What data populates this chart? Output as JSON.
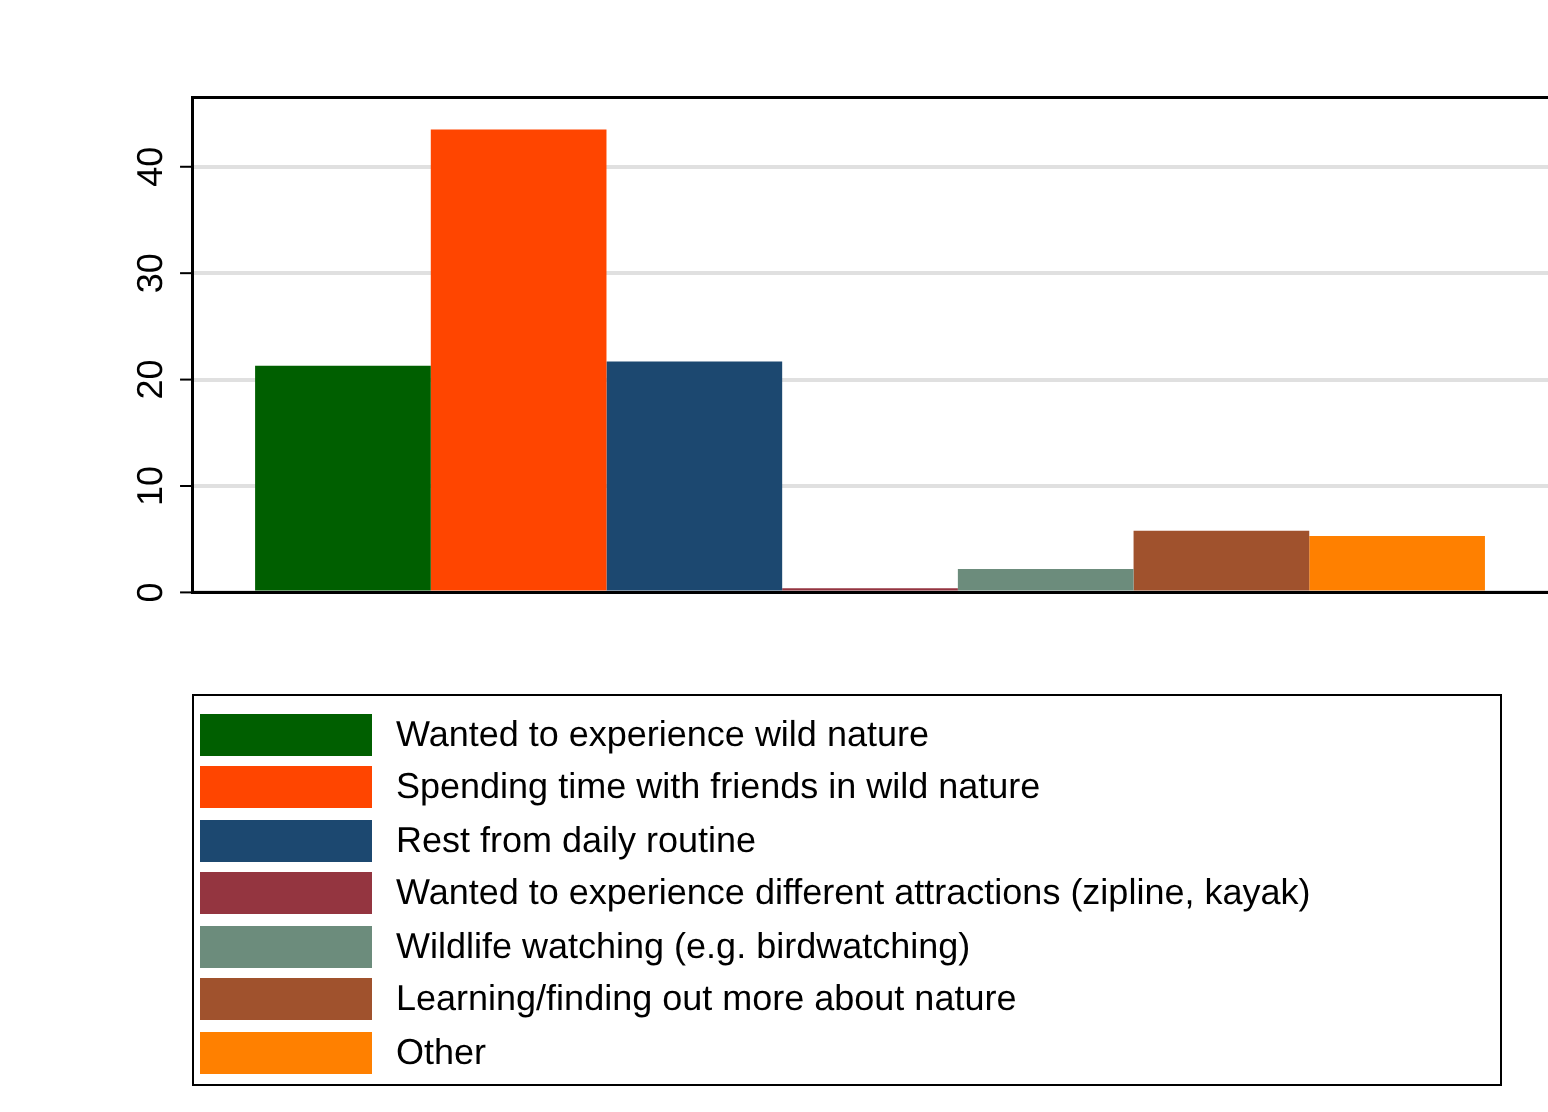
{
  "chart_data": {
    "type": "bar",
    "categories": [
      null
    ],
    "series": [
      {
        "name": "Wanted to experience wild nature",
        "color": "#005f00",
        "values": [
          21.3
        ]
      },
      {
        "name": "Spending time with friends in wild nature",
        "color": "#ff4500",
        "values": [
          43.5
        ]
      },
      {
        "name": "Rest from daily routine",
        "color": "#1c4870",
        "values": [
          21.7
        ]
      },
      {
        "name": "Wanted to experience different attractions (zipline, kayak)",
        "color": "#943540",
        "values": [
          0.4
        ]
      },
      {
        "name": "Wildlife watching (e.g. birdwatching)",
        "color": "#6c8c7c",
        "values": [
          2.2
        ]
      },
      {
        "name": "Learning/finding out more about nature",
        "color": "#a0522d",
        "values": [
          5.8
        ]
      },
      {
        "name": "Other",
        "color": "#ff8000",
        "values": [
          5.3
        ]
      }
    ],
    "ylim": [
      0,
      46.5
    ],
    "yticks": [
      0,
      10,
      20,
      30,
      40
    ],
    "grid": "y",
    "legend": "bottom"
  }
}
